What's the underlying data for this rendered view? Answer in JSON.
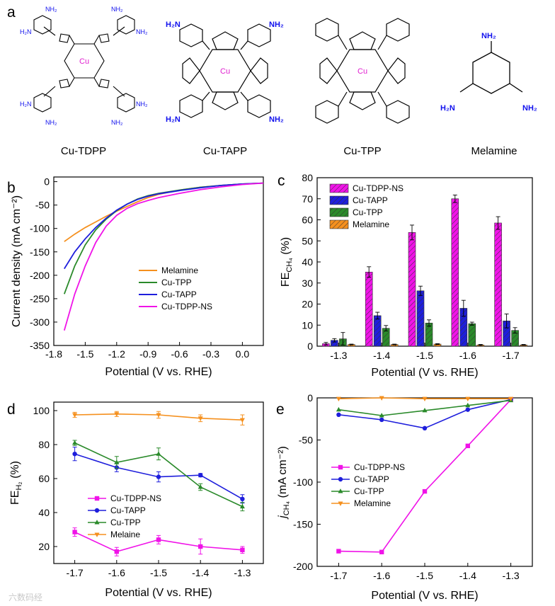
{
  "panels": {
    "a": "a",
    "b": "b",
    "c": "c",
    "d": "d",
    "e": "e"
  },
  "molecules": {
    "names": [
      "Cu-TDPP",
      "Cu-TAPP",
      "Cu-TPP",
      "Melamine"
    ],
    "atoms": {
      "cu": "Cu",
      "n": "N",
      "nh2": "NH₂",
      "h2n": "H₂N"
    }
  },
  "watermark": "六数码经",
  "colors": {
    "melamine": "#f5901e",
    "cutpp": "#2a8a2a",
    "cutapp": "#1e1edc",
    "cutdpp": "#f013e8"
  },
  "chart_data": [
    {
      "id": "b",
      "type": "line",
      "xlabel": "Potential (V vs. RHE)",
      "ylabel": "Current density (mA cm⁻²)",
      "xlim": [
        -1.8,
        0.2
      ],
      "ylim": [
        -350,
        10
      ],
      "xticks": [
        "-1.8",
        "-1.5",
        "-1.2",
        "-0.9",
        "-0.6",
        "-0.3",
        "0.0"
      ],
      "yticks": [
        "0",
        "-50",
        "-100",
        "-150",
        "-200",
        "-250",
        "-300",
        "-350"
      ],
      "legend": [
        "Melamine",
        "Cu-TPP",
        "Cu-TAPP",
        "Cu-TDPP-NS"
      ],
      "series": [
        {
          "name": "Melamine",
          "x": [
            -1.7,
            -1.6,
            -1.5,
            -1.4,
            -1.3,
            -1.2,
            -1.1,
            -1.0,
            -0.9,
            -0.8,
            -0.6,
            -0.4,
            -0.2,
            0.0,
            0.2
          ],
          "y": [
            -128,
            -112,
            -98,
            -86,
            -74,
            -63,
            -53,
            -43,
            -34,
            -27,
            -18,
            -12,
            -8,
            -5,
            -3
          ]
        },
        {
          "name": "Cu-TPP",
          "x": [
            -1.7,
            -1.6,
            -1.5,
            -1.4,
            -1.3,
            -1.2,
            -1.1,
            -1.0,
            -0.9,
            -0.8,
            -0.6,
            -0.4,
            -0.2,
            0.0,
            0.2
          ],
          "y": [
            -240,
            -180,
            -135,
            -103,
            -80,
            -62,
            -48,
            -37,
            -30,
            -25,
            -18,
            -12,
            -8,
            -5,
            -3
          ]
        },
        {
          "name": "Cu-TAPP",
          "x": [
            -1.7,
            -1.6,
            -1.5,
            -1.4,
            -1.3,
            -1.2,
            -1.1,
            -1.0,
            -0.9,
            -0.8,
            -0.6,
            -0.4,
            -0.2,
            0.0,
            0.2
          ],
          "y": [
            -186,
            -150,
            -122,
            -98,
            -78,
            -61,
            -48,
            -38,
            -31,
            -26,
            -19,
            -13,
            -8,
            -5,
            -3
          ]
        },
        {
          "name": "Cu-TDPP-NS",
          "x": [
            -1.7,
            -1.6,
            -1.5,
            -1.4,
            -1.3,
            -1.2,
            -1.1,
            -1.0,
            -0.9,
            -0.8,
            -0.6,
            -0.4,
            -0.2,
            0.0,
            0.2
          ],
          "y": [
            -318,
            -240,
            -180,
            -130,
            -95,
            -72,
            -57,
            -47,
            -40,
            -34,
            -25,
            -17,
            -11,
            -6,
            -3
          ]
        }
      ]
    },
    {
      "id": "c",
      "type": "bar",
      "xlabel": "Potential (V vs. RHE)",
      "ylabel": "FE",
      "ylabel_sub": "CH₄",
      "ylabel_tail": "(%)",
      "categories": [
        "-1.3",
        "-1.4",
        "-1.5",
        "-1.6",
        "-1.7"
      ],
      "ylim": [
        0,
        80
      ],
      "yticks": [
        "0",
        "10",
        "20",
        "30",
        "40",
        "50",
        "60",
        "70",
        "80"
      ],
      "legend": [
        "Cu-TDPP-NS",
        "Cu-TAPP",
        "Cu-TPP",
        "Melamine"
      ],
      "series": [
        {
          "name": "Cu-TDPP-NS",
          "values": [
            1.2,
            35.2,
            54.0,
            70.0,
            58.5
          ],
          "errors": [
            0.6,
            2.5,
            3.5,
            1.8,
            3.0
          ]
        },
        {
          "name": "Cu-TAPP",
          "values": [
            2.8,
            14.5,
            26.3,
            18.0,
            12.0
          ],
          "errors": [
            0.8,
            1.6,
            2.2,
            3.8,
            3.3
          ]
        },
        {
          "name": "Cu-TPP",
          "values": [
            3.5,
            8.5,
            11.0,
            10.7,
            7.5
          ],
          "errors": [
            3.0,
            1.3,
            1.5,
            0.7,
            1.3
          ]
        },
        {
          "name": "Melamine",
          "values": [
            0.8,
            0.8,
            1.0,
            0.6,
            0.6
          ],
          "errors": [
            0.2,
            0.2,
            0.2,
            0.2,
            0.2
          ]
        }
      ]
    },
    {
      "id": "d",
      "type": "line",
      "xlabel": "Potential (V vs. RHE)",
      "ylabel": "FE",
      "ylabel_sub": "H₂",
      "ylabel_tail": "(%)",
      "x": [
        -1.7,
        -1.6,
        -1.5,
        -1.4,
        -1.3
      ],
      "xticks": [
        "-1.7",
        "-1.6",
        "-1.5",
        "-1.4",
        "-1.3"
      ],
      "ylim": [
        10,
        105
      ],
      "yticks": [
        "20",
        "40",
        "60",
        "80",
        "100"
      ],
      "legend": [
        "Cu-TDPP-NS",
        "Cu-TAPP",
        "Cu-TPP",
        "Melaine"
      ],
      "series": [
        {
          "name": "Cu-TDPP-NS",
          "values": [
            28.5,
            17.0,
            24.0,
            20.0,
            18.0
          ],
          "errors": [
            2.5,
            2.5,
            2.5,
            4.5,
            2.0
          ]
        },
        {
          "name": "Cu-TAPP",
          "values": [
            74.5,
            66.5,
            61.0,
            62.0,
            48.0
          ],
          "errors": [
            4.0,
            2.5,
            3.0,
            1.0,
            2.5
          ]
        },
        {
          "name": "Cu-TPP",
          "values": [
            81.0,
            69.5,
            74.5,
            55.0,
            43.5
          ],
          "errors": [
            1.5,
            3.5,
            3.5,
            2.0,
            2.5
          ]
        },
        {
          "name": "Melaine",
          "values": [
            97.5,
            98.0,
            97.5,
            95.5,
            94.5
          ],
          "errors": [
            1.5,
            1.5,
            2.0,
            2.0,
            3.0
          ]
        }
      ]
    },
    {
      "id": "e",
      "type": "line",
      "xlabel": "Potential (V vs. RHE)",
      "ylabel": "j",
      "ylabel_sub": "CH₄",
      "ylabel_tail": "(mA cm⁻²)",
      "x": [
        -1.7,
        -1.6,
        -1.5,
        -1.4,
        -1.3
      ],
      "xticks": [
        "-1.7",
        "-1.6",
        "-1.5",
        "-1.4",
        "-1.3"
      ],
      "ylim": [
        -200,
        0
      ],
      "yticks": [
        "0",
        "-50",
        "-100",
        "-150",
        "-200"
      ],
      "legend": [
        "Cu-TDPP-NS",
        "Cu-TAPP",
        "Cu-TPP",
        "Melamine"
      ],
      "series": [
        {
          "name": "Cu-TDPP-NS",
          "values": [
            -182,
            -183,
            -111,
            -57,
            -2
          ]
        },
        {
          "name": "Cu-TAPP",
          "values": [
            -20,
            -26,
            -36,
            -14,
            -2
          ]
        },
        {
          "name": "Cu-TPP",
          "values": [
            -14,
            -21,
            -15,
            -9,
            -3
          ]
        },
        {
          "name": "Melamine",
          "values": [
            -1,
            0,
            -1,
            -1,
            -1
          ]
        }
      ]
    }
  ]
}
